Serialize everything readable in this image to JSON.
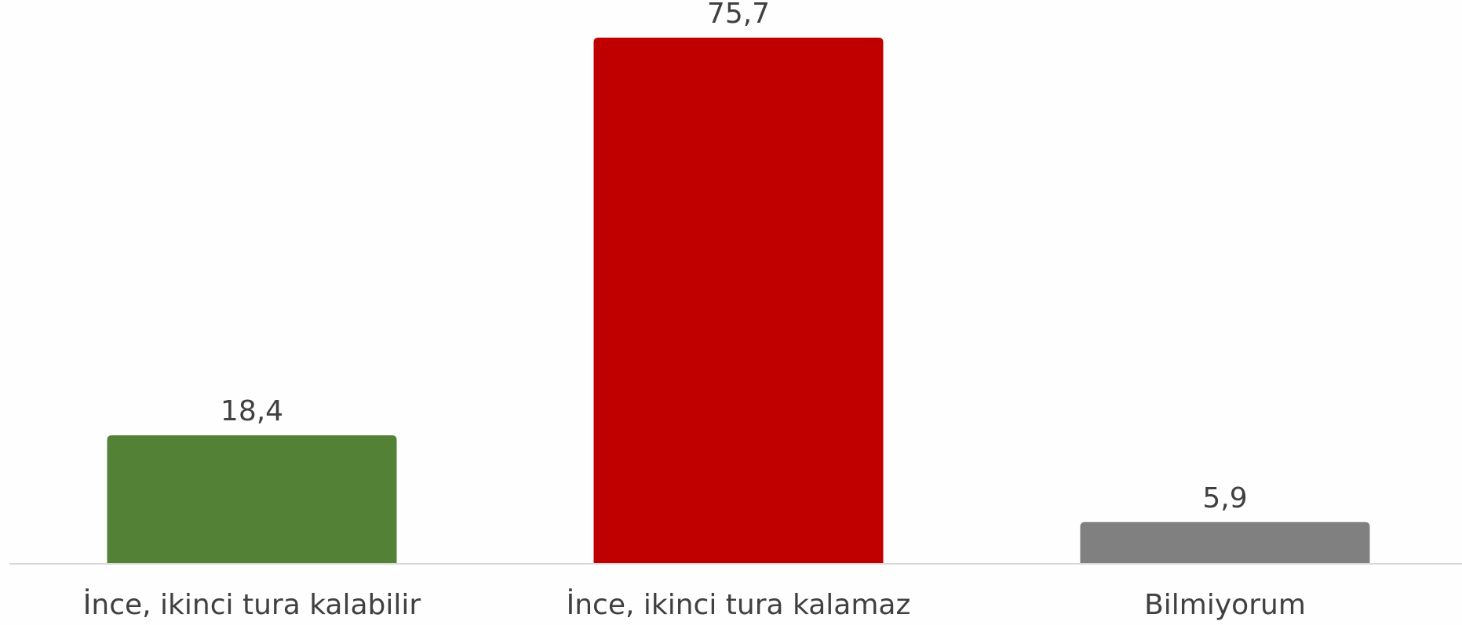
{
  "chart_data": {
    "type": "bar",
    "categories": [
      "İnce, ikinci tura kalabilir",
      "İnce, ikinci tura kalamaz",
      "Bilmiyorum"
    ],
    "values": [
      18.4,
      75.7,
      5.9
    ],
    "value_labels": [
      "18,4",
      "75,7",
      "5,9"
    ],
    "colors": [
      "#538135",
      "#c00000",
      "#808080"
    ]
  }
}
